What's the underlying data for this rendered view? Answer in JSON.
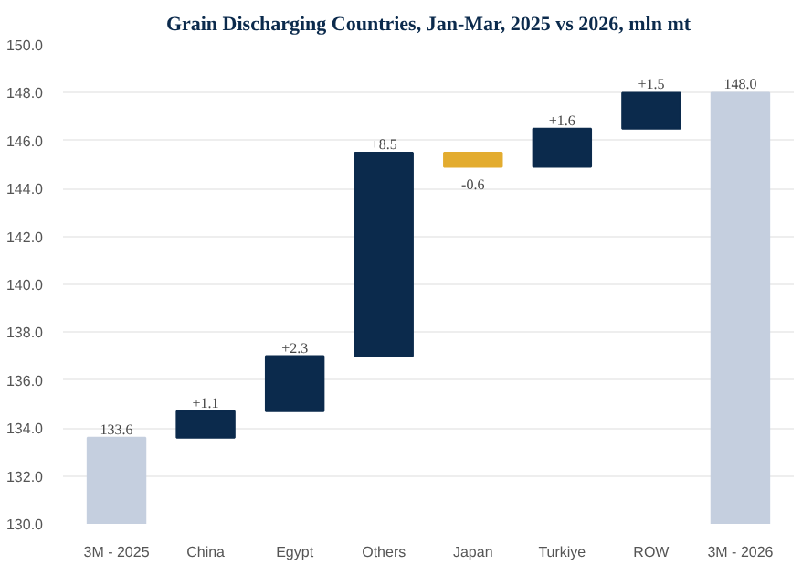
{
  "chart_data": {
    "type": "bar",
    "title": "Grain Discharging Countries, Jan-Mar, 2025 vs 2026, mln mt",
    "categories": [
      "3M - 2025",
      "China",
      "Egypt",
      "Others",
      "Japan",
      "Turkiye",
      "ROW",
      "3M - 2026"
    ],
    "base": [
      130,
      133.6,
      134.7,
      137.0,
      145.5,
      144.9,
      146.5,
      130
    ],
    "values": [
      3.6,
      1.1,
      2.3,
      8.5,
      -0.6,
      1.6,
      1.5,
      18.0
    ],
    "value_labels": [
      "133.6",
      "+1.1",
      "+2.3",
      "+8.5",
      "-0.6",
      "+1.6",
      "+1.5",
      "148.0"
    ],
    "colors": [
      "#c5cfdf",
      "#0b2a4c",
      "#0b2a4c",
      "#0b2a4c",
      "#e3ac2f",
      "#0b2a4c",
      "#0b2a4c",
      "#c5cfdf"
    ],
    "ylim": [
      130,
      150
    ],
    "yticks": [
      {
        "value": 130,
        "label": "130.0"
      },
      {
        "value": 132,
        "label": "132.0"
      },
      {
        "value": 134,
        "label": "134.0"
      },
      {
        "value": 136,
        "label": "136.0"
      },
      {
        "value": 138,
        "label": "138.0"
      },
      {
        "value": 140,
        "label": "140.0"
      },
      {
        "value": 142,
        "label": "142.0"
      },
      {
        "value": 144,
        "label": "144.0"
      },
      {
        "value": 146,
        "label": "146.0"
      },
      {
        "value": 148,
        "label": "148.0"
      },
      {
        "value": 150,
        "label": "150.0"
      }
    ],
    "grid": "y"
  }
}
